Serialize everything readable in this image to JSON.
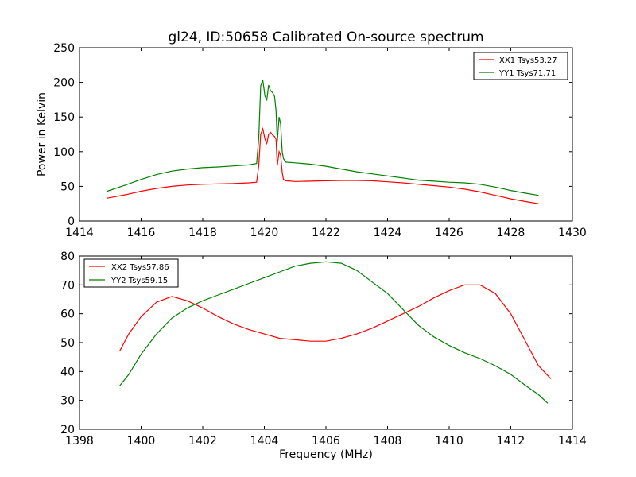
{
  "chart_data": [
    {
      "type": "line",
      "title": "gl24, ID:50658 Calibrated On-source spectrum",
      "xlabel": "",
      "ylabel": "Power in Kelvin",
      "xlim": [
        1414,
        1430
      ],
      "ylim": [
        0,
        250
      ],
      "xticks": [
        1414,
        1416,
        1418,
        1420,
        1422,
        1424,
        1426,
        1428,
        1430
      ],
      "yticks": [
        0,
        50,
        100,
        150,
        200,
        250
      ],
      "legend_position": "top-right",
      "series": [
        {
          "name": "XX1 Tsys53.27",
          "color": "#ff0000",
          "x": [
            1414.9,
            1415.5,
            1416.0,
            1416.5,
            1417.0,
            1417.5,
            1418.0,
            1418.5,
            1419.0,
            1419.5,
            1419.75,
            1419.82,
            1419.88,
            1419.95,
            1420.02,
            1420.08,
            1420.14,
            1420.2,
            1420.27,
            1420.33,
            1420.38,
            1420.42,
            1420.48,
            1420.53,
            1420.58,
            1420.62,
            1420.7,
            1421.0,
            1421.5,
            1422.0,
            1422.5,
            1423.0,
            1423.5,
            1424.0,
            1424.5,
            1425.0,
            1425.5,
            1426.0,
            1426.5,
            1427.0,
            1427.5,
            1428.0,
            1428.5,
            1428.9
          ],
          "y": [
            33,
            38,
            43,
            47,
            50,
            52,
            53,
            53.5,
            54,
            55,
            56,
            80,
            125,
            133,
            118,
            112,
            125,
            128,
            124,
            122,
            118,
            80,
            100,
            95,
            70,
            60,
            58,
            57,
            57.5,
            58,
            58.5,
            58.5,
            58,
            56.5,
            55,
            53,
            51,
            49,
            46,
            42,
            37,
            32,
            28,
            25
          ]
        },
        {
          "name": "YY1 Tsys71.71",
          "color": "#008000",
          "x": [
            1414.9,
            1415.5,
            1416.0,
            1416.5,
            1417.0,
            1417.5,
            1418.0,
            1418.5,
            1419.0,
            1419.5,
            1419.75,
            1419.82,
            1419.88,
            1419.95,
            1420.02,
            1420.08,
            1420.14,
            1420.2,
            1420.27,
            1420.33,
            1420.38,
            1420.42,
            1420.48,
            1420.53,
            1420.58,
            1420.62,
            1420.7,
            1421.0,
            1421.5,
            1422.0,
            1422.5,
            1423.0,
            1423.5,
            1424.0,
            1424.5,
            1425.0,
            1425.5,
            1426.0,
            1426.5,
            1427.0,
            1427.5,
            1428.0,
            1428.5,
            1428.9
          ],
          "y": [
            43,
            52,
            60,
            67,
            72,
            75,
            77,
            78,
            79.5,
            81,
            83,
            120,
            195,
            203,
            180,
            175,
            196,
            188,
            185,
            180,
            160,
            115,
            150,
            140,
            100,
            90,
            85,
            84,
            82,
            79,
            75,
            71,
            68,
            65,
            62,
            59,
            57.5,
            56,
            55,
            53,
            49,
            44,
            40,
            37
          ]
        }
      ]
    },
    {
      "type": "line",
      "title": "",
      "xlabel": "Frequency (MHz)",
      "ylabel": "",
      "xlim": [
        1398,
        1414
      ],
      "ylim": [
        20,
        80
      ],
      "xticks": [
        1398,
        1400,
        1402,
        1404,
        1406,
        1408,
        1410,
        1412,
        1414
      ],
      "yticks": [
        20,
        30,
        40,
        50,
        60,
        70,
        80
      ],
      "legend_position": "top-left",
      "series": [
        {
          "name": "XX2 Tsys57.86",
          "color": "#ff0000",
          "x": [
            1399.3,
            1399.6,
            1400.0,
            1400.5,
            1401.0,
            1401.5,
            1402.0,
            1402.5,
            1403.0,
            1403.5,
            1404.0,
            1404.5,
            1405.0,
            1405.5,
            1406.0,
            1406.5,
            1407.0,
            1407.5,
            1408.0,
            1408.5,
            1409.0,
            1409.5,
            1410.0,
            1410.5,
            1411.0,
            1411.5,
            1412.0,
            1412.5,
            1412.9,
            1413.3
          ],
          "y": [
            47,
            53,
            59,
            64,
            66,
            64.5,
            62,
            59,
            56.5,
            54.5,
            53,
            51.5,
            51,
            50.5,
            50.5,
            51.5,
            53,
            55,
            57.5,
            60,
            62.5,
            65.5,
            68,
            70,
            70,
            67,
            60,
            50,
            42,
            37.5
          ]
        },
        {
          "name": "YY2 Tsys59.15",
          "color": "#008000",
          "x": [
            1399.3,
            1399.6,
            1400.0,
            1400.5,
            1401.0,
            1401.5,
            1402.0,
            1402.5,
            1403.0,
            1403.5,
            1404.0,
            1404.5,
            1405.0,
            1405.5,
            1406.0,
            1406.5,
            1407.0,
            1407.5,
            1408.0,
            1408.5,
            1409.0,
            1409.5,
            1410.0,
            1410.5,
            1411.0,
            1411.5,
            1412.0,
            1412.5,
            1412.9,
            1413.2
          ],
          "y": [
            35,
            39,
            46,
            53,
            58.5,
            62,
            64.5,
            66.5,
            68.5,
            70.5,
            72.5,
            74.5,
            76.5,
            77.5,
            78,
            77.5,
            75,
            71,
            67,
            61.5,
            56,
            52,
            49,
            46.5,
            44.5,
            42,
            39,
            35,
            32,
            29
          ]
        }
      ]
    }
  ]
}
